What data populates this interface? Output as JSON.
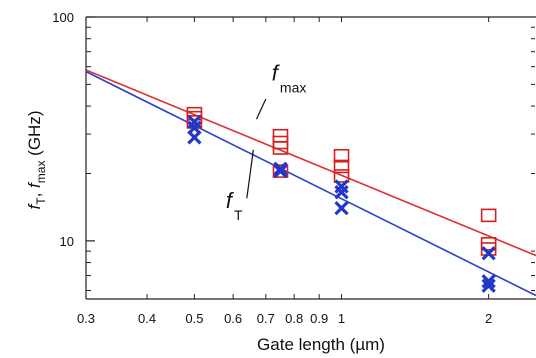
{
  "chart_data": {
    "type": "scatter",
    "xlabel": "Gate length (µm)",
    "ylabel": {
      "parts": [
        "f",
        "T",
        ", ",
        "f",
        "max",
        " (GHz)"
      ]
    },
    "xscale": "log",
    "yscale": "log",
    "xlim": [
      0.3,
      2.5
    ],
    "ylim": [
      5.5,
      100
    ],
    "x_tick_labels": [
      {
        "value": 0.3,
        "label": "0.3"
      },
      {
        "value": 0.4,
        "label": "0.4"
      },
      {
        "value": 0.5,
        "label": "0.5"
      },
      {
        "value": 0.6,
        "label": "0.6"
      },
      {
        "value": 0.7,
        "label": "0.7"
      },
      {
        "value": 0.8,
        "label": "0.8"
      },
      {
        "value": 0.9,
        "label": "0.9"
      },
      {
        "value": 1,
        "label": "1"
      },
      {
        "value": 2,
        "label": "2"
      }
    ],
    "y_tick_labels": [
      {
        "value": 10,
        "label": "10"
      },
      {
        "value": 100,
        "label": "100"
      }
    ],
    "grid": false,
    "legend": "none",
    "series": [
      {
        "marker": "square",
        "color": "#d62020",
        "points": [
          [
            0.5,
            37
          ],
          [
            0.5,
            35.5
          ],
          [
            0.5,
            34
          ],
          [
            0.75,
            29.5
          ],
          [
            0.75,
            27.5
          ],
          [
            0.75,
            26
          ],
          [
            0.75,
            20.5
          ],
          [
            1,
            24
          ],
          [
            1,
            21.5
          ],
          [
            1,
            19.5
          ],
          [
            2,
            13
          ],
          [
            2,
            9.7
          ],
          [
            2,
            9.2
          ]
        ]
      },
      {
        "marker": "x",
        "color": "#2236c8",
        "points": [
          [
            0.5,
            34
          ],
          [
            0.5,
            32
          ],
          [
            0.5,
            29
          ],
          [
            0.75,
            21
          ],
          [
            0.75,
            20.5
          ],
          [
            1,
            17.5
          ],
          [
            1,
            16.5
          ],
          [
            1,
            14
          ],
          [
            2,
            8.8
          ],
          [
            2,
            6.6
          ],
          [
            2,
            6.3
          ]
        ]
      }
    ],
    "trend_lines": [
      {
        "color": "#e03030",
        "from": [
          0.3,
          58
        ],
        "to": [
          2.5,
          8.6
        ]
      },
      {
        "color": "#2a3fd0",
        "from": [
          0.3,
          57
        ],
        "to": [
          2.5,
          5.7
        ]
      }
    ],
    "annotations": [
      {
        "main": "f",
        "sub": "max",
        "at": [
          0.72,
          52
        ]
      },
      {
        "main": "f",
        "sub": "T",
        "at": [
          0.58,
          14
        ]
      }
    ]
  }
}
